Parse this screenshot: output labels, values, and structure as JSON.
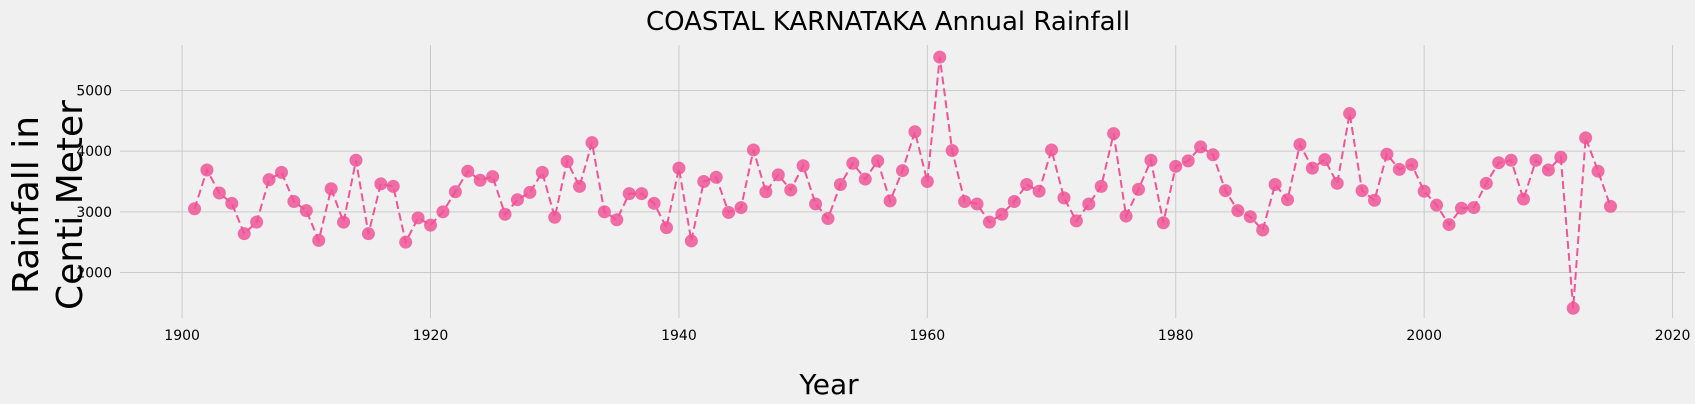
{
  "chart_data": {
    "type": "line",
    "title": "COASTAL KARNATAKA Annual Rainfall",
    "xlabel": "Year",
    "ylabel": "Rainfall in Centi Meter",
    "ylabel_lines": [
      "Rainfall in",
      "Centi Meter"
    ],
    "xlim": [
      1895,
      2021
    ],
    "ylim": [
      1250,
      5750
    ],
    "xticks": [
      1900,
      1920,
      1940,
      1960,
      1980,
      2000,
      2020
    ],
    "yticks": [
      2000,
      3000,
      4000,
      5000
    ],
    "grid": true,
    "line_style": "dashed",
    "marker": "circle",
    "color": "#f05596",
    "x": [
      1901,
      1902,
      1903,
      1904,
      1905,
      1906,
      1907,
      1908,
      1909,
      1910,
      1911,
      1912,
      1913,
      1914,
      1915,
      1916,
      1917,
      1918,
      1919,
      1920,
      1921,
      1922,
      1923,
      1924,
      1925,
      1926,
      1927,
      1928,
      1929,
      1930,
      1931,
      1932,
      1933,
      1934,
      1935,
      1936,
      1937,
      1938,
      1939,
      1940,
      1941,
      1942,
      1943,
      1944,
      1945,
      1946,
      1947,
      1948,
      1949,
      1950,
      1951,
      1952,
      1953,
      1954,
      1955,
      1956,
      1957,
      1958,
      1959,
      1960,
      1961,
      1962,
      1963,
      1964,
      1965,
      1966,
      1967,
      1968,
      1969,
      1970,
      1971,
      1972,
      1973,
      1974,
      1975,
      1976,
      1977,
      1978,
      1979,
      1980,
      1981,
      1982,
      1983,
      1984,
      1985,
      1986,
      1987,
      1988,
      1989,
      1990,
      1991,
      1992,
      1993,
      1994,
      1995,
      1996,
      1997,
      1998,
      1999,
      2000,
      2001,
      2002,
      2003,
      2004,
      2005,
      2006,
      2007,
      2008,
      2009,
      2010,
      2011,
      2012,
      2013,
      2014,
      2015
    ],
    "y": [
      3050,
      3690,
      3310,
      3140,
      2640,
      2830,
      3530,
      3650,
      3170,
      3020,
      2530,
      3380,
      2830,
      3850,
      2640,
      3460,
      3420,
      2500,
      2900,
      2780,
      3000,
      3330,
      3670,
      3520,
      3580,
      2960,
      3200,
      3320,
      3650,
      2910,
      3830,
      3420,
      4140,
      3000,
      2870,
      3300,
      3300,
      3140,
      2740,
      3720,
      2520,
      3500,
      3570,
      2990,
      3070,
      4020,
      3330,
      3610,
      3360,
      3760,
      3130,
      2890,
      3450,
      3800,
      3540,
      3840,
      3180,
      3680,
      4320,
      3500,
      5550,
      4010,
      3170,
      3130,
      2830,
      2960,
      3170,
      3450,
      3340,
      4020,
      3230,
      2850,
      3130,
      3420,
      4290,
      2930,
      3370,
      3850,
      2820,
      3750,
      3840,
      4070,
      3940,
      3350,
      3020,
      2920,
      2700,
      3450,
      3200,
      4110,
      3720,
      3860,
      3470,
      4620,
      3350,
      3190,
      3950,
      3700,
      3780,
      3340,
      3110,
      2790,
      3060,
      3070,
      3470,
      3810,
      3850,
      3210,
      3850,
      3690,
      3900,
      1410,
      4220,
      3670,
      3090
    ]
  }
}
